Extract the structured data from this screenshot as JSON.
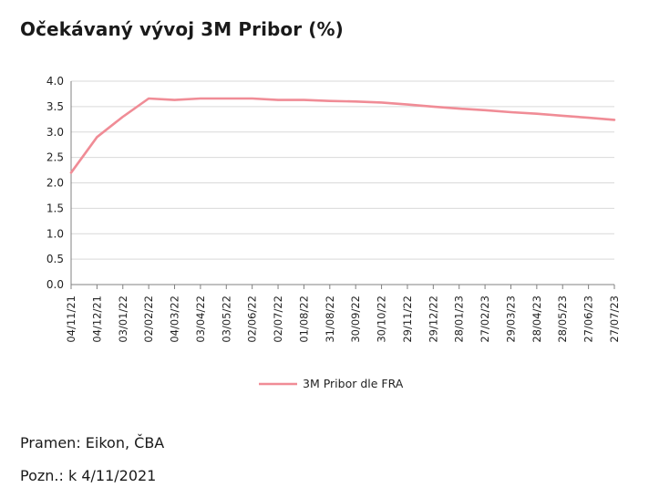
{
  "title": "Očekávaný vývoj 3M Pribor (%)",
  "source": "Pramen: Eikon, ČBA",
  "note": "Pozn.: k 4/11/2021",
  "colors": {
    "series": "#f08c96",
    "grid": "#d9d9d9",
    "axis": "#808080"
  },
  "chart_data": {
    "type": "line",
    "title": "Očekávaný vývoj 3M Pribor (%)",
    "xlabel": "",
    "ylabel": "",
    "ylim": [
      0,
      4
    ],
    "yticks": [
      "0.0",
      "0.5",
      "1.0",
      "1.5",
      "2.0",
      "2.5",
      "3.0",
      "3.5",
      "4.0"
    ],
    "grid": true,
    "legend": "bottom",
    "x": [
      "04/11/21",
      "04/12/21",
      "03/01/22",
      "02/02/22",
      "04/03/22",
      "03/04/22",
      "03/05/22",
      "02/06/22",
      "02/07/22",
      "01/08/22",
      "31/08/22",
      "30/09/22",
      "30/10/22",
      "29/11/22",
      "29/12/22",
      "28/01/23",
      "27/02/23",
      "29/03/23",
      "28/04/23",
      "28/05/23",
      "27/06/23",
      "27/07/23"
    ],
    "series": [
      {
        "name": "3M Pribor dle FRA",
        "values": [
          2.2,
          2.9,
          3.3,
          3.66,
          3.63,
          3.66,
          3.66,
          3.66,
          3.63,
          3.63,
          3.61,
          3.6,
          3.58,
          3.54,
          3.5,
          3.46,
          3.43,
          3.39,
          3.36,
          3.32,
          3.28,
          3.24
        ]
      }
    ]
  }
}
